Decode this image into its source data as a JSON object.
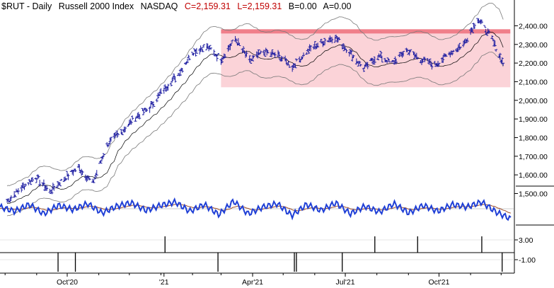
{
  "header": {
    "symbol": "$RUT - Daily",
    "name": "Russell 2000 Index",
    "exchange": "NASDAQ",
    "close": "C=2,159.31",
    "last": "L=2,159.31",
    "bid": "B=0.00",
    "ask": "A=0.00"
  },
  "colors": {
    "bars": "#1a1aa0",
    "band": "#7a7a7a",
    "ma": "#000000",
    "range_fill": "#fbd3d8",
    "range_line": "#f07f8a",
    "oscillator": "#1f3fd6",
    "osc_signal": "#a0502a"
  },
  "chart_data": [
    {
      "type": "line",
      "title": "",
      "series_style": "OHLC bars with moving-average envelope",
      "x_ticks": [
        "Oct'20",
        "'21",
        "Apr'21",
        "Jul'21",
        "Oct'21"
      ],
      "y_ticks": [
        "2,400.00",
        "2,300.00",
        "2,200.00",
        "2,100.00",
        "2,000.00",
        "1,900.00",
        "1,800.00",
        "1,700.00",
        "1,600.00",
        "1,500.00"
      ],
      "ylim": [
        1460,
        2470
      ],
      "x": [
        "2020-08-03",
        "2020-08-17",
        "2020-08-31",
        "2020-09-14",
        "2020-09-28",
        "2020-10-12",
        "2020-10-26",
        "2020-11-09",
        "2020-11-23",
        "2020-12-07",
        "2020-12-21",
        "2021-01-04",
        "2021-01-18",
        "2021-02-01",
        "2021-02-15",
        "2021-03-01",
        "2021-03-15",
        "2021-03-29",
        "2021-04-12",
        "2021-04-26",
        "2021-05-10",
        "2021-05-24",
        "2021-06-07",
        "2021-06-21",
        "2021-07-05",
        "2021-07-19",
        "2021-08-02",
        "2021-08-16",
        "2021-08-30",
        "2021-09-13",
        "2021-09-27",
        "2021-10-11",
        "2021-10-25",
        "2021-11-08",
        "2021-11-22",
        "2021-12-06"
      ],
      "close": [
        1460,
        1530,
        1590,
        1510,
        1580,
        1640,
        1555,
        1760,
        1830,
        1910,
        1960,
        2060,
        2140,
        2260,
        2290,
        2220,
        2330,
        2210,
        2260,
        2240,
        2180,
        2260,
        2310,
        2340,
        2260,
        2170,
        2240,
        2200,
        2270,
        2220,
        2190,
        2250,
        2300,
        2440,
        2330,
        2160
      ],
      "range_box": {
        "low": 2070,
        "high": 2370,
        "from": "2021-03-01",
        "to": "2021-12-10"
      }
    },
    {
      "type": "line",
      "title": "",
      "series_style": "oscillator with signal line",
      "values": [
        0.2,
        -0.3,
        0.5,
        -0.6,
        0.4,
        -0.1,
        0.6,
        -0.5,
        0.3,
        0.7,
        -0.2,
        0.4,
        0.8,
        -0.3,
        0.5,
        -0.7,
        0.9,
        -0.6,
        0.2,
        0.6,
        -0.8,
        0.5,
        -0.2,
        0.7,
        -0.6,
        0.3,
        -0.4,
        0.6,
        -0.5,
        0.4,
        -0.3,
        0.5,
        0.2,
        0.8,
        -0.4,
        -1.2
      ]
    },
    {
      "type": "bar",
      "title": "",
      "series_style": "event spikes",
      "y_ticks": [
        "3.00",
        "-1.00"
      ],
      "events": [
        {
          "date": "2020-09-22",
          "value": -1
        },
        {
          "date": "2020-10-09",
          "value": -1
        },
        {
          "date": "2021-01-05",
          "value": 3
        },
        {
          "date": "2021-02-26",
          "value": -1
        },
        {
          "date": "2021-05-12",
          "value": -1
        },
        {
          "date": "2021-05-14",
          "value": -1
        },
        {
          "date": "2021-06-28",
          "value": -1
        },
        {
          "date": "2021-07-30",
          "value": 3
        },
        {
          "date": "2021-09-10",
          "value": 3
        },
        {
          "date": "2021-11-12",
          "value": 3
        },
        {
          "date": "2021-12-02",
          "value": -1
        }
      ]
    }
  ]
}
